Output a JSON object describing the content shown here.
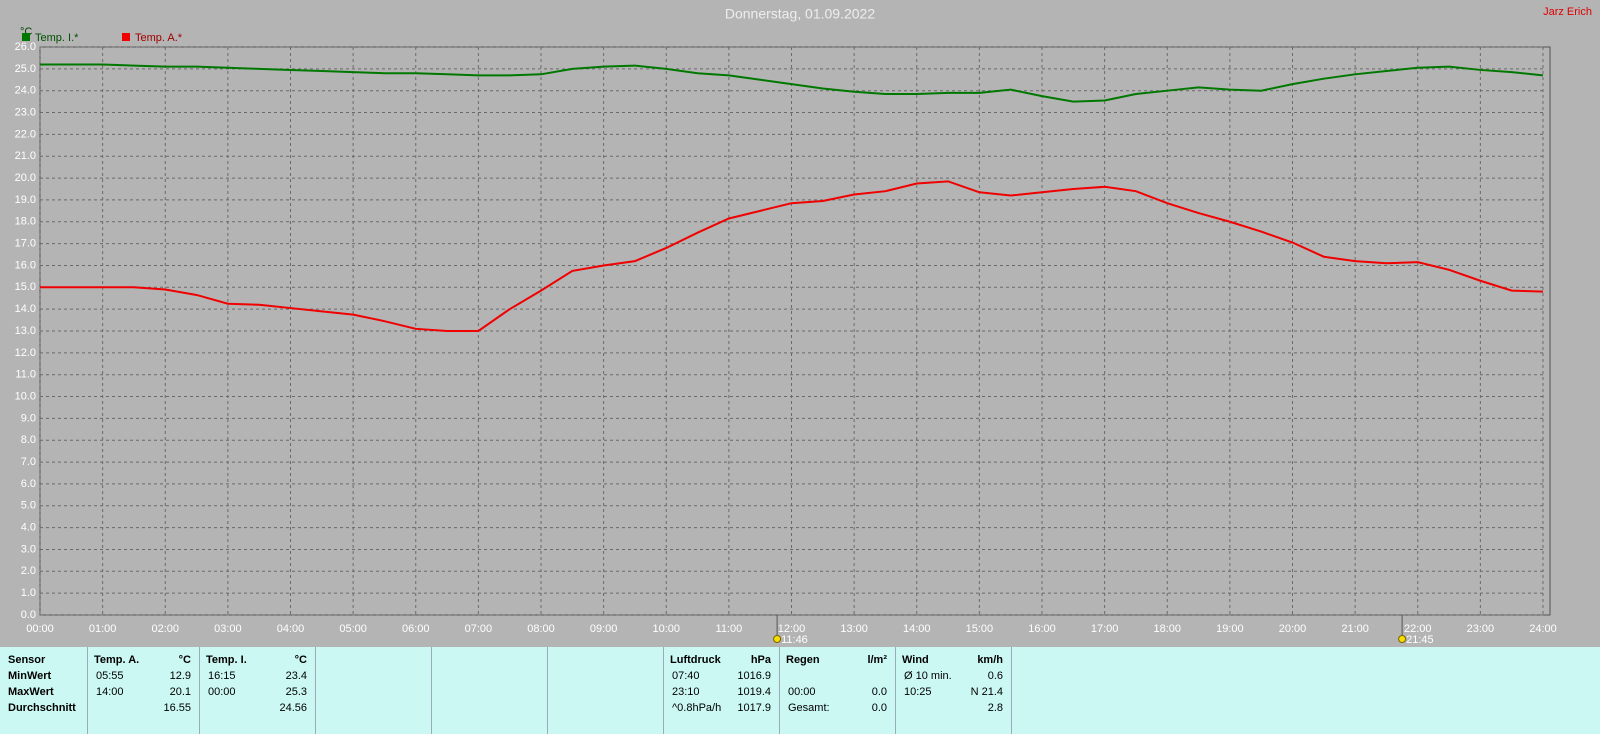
{
  "header": {
    "user": "Jarz Erich"
  },
  "chart_data": {
    "type": "line",
    "title": "Donnerstag, 01.09.2022",
    "ylabel": "°C",
    "x": [
      0,
      0.5,
      1,
      1.5,
      2,
      2.5,
      3,
      3.5,
      4,
      4.5,
      5,
      5.5,
      6,
      6.5,
      7,
      7.5,
      8,
      8.5,
      9,
      9.5,
      10,
      10.5,
      11,
      11.5,
      12,
      12.5,
      13,
      13.5,
      14,
      14.5,
      15,
      15.5,
      16,
      16.5,
      17,
      17.5,
      18,
      18.5,
      19,
      19.5,
      20,
      20.5,
      21,
      21.5,
      22,
      22.5,
      23,
      23.5,
      24
    ],
    "series": [
      {
        "name": "Temp. I.*",
        "color": "#007800",
        "values": [
          25.2,
          25.2,
          25.2,
          25.15,
          25.1,
          25.1,
          25.05,
          25.0,
          24.95,
          24.9,
          24.85,
          24.8,
          24.8,
          24.75,
          24.7,
          24.7,
          24.75,
          25.0,
          25.1,
          25.15,
          25.0,
          24.8,
          24.7,
          24.5,
          24.3,
          24.1,
          23.95,
          23.85,
          23.85,
          23.9,
          23.9,
          24.05,
          23.75,
          23.5,
          23.55,
          23.85,
          24.0,
          24.15,
          24.05,
          24.0,
          24.3,
          24.55,
          24.75,
          24.9,
          25.05,
          25.1,
          24.95,
          24.85,
          24.7
        ]
      },
      {
        "name": "Temp. A.*",
        "color": "#f00000",
        "values": [
          15.0,
          15.0,
          15.0,
          15.0,
          14.9,
          14.65,
          14.25,
          14.2,
          14.05,
          13.9,
          13.75,
          13.45,
          13.1,
          13.0,
          13.0,
          14.0,
          14.85,
          15.75,
          16.0,
          16.2,
          16.8,
          17.5,
          18.15,
          18.5,
          18.85,
          18.95,
          19.25,
          19.4,
          19.75,
          19.85,
          19.35,
          19.2,
          19.35,
          19.5,
          19.6,
          19.4,
          18.85,
          18.4,
          18.0,
          17.55,
          17.05,
          16.4,
          16.2,
          16.1,
          16.15,
          15.8,
          15.3,
          14.85,
          14.8
        ]
      }
    ],
    "xlim": [
      0,
      24
    ],
    "xticks": [
      {
        "value": 0,
        "label": "00:00"
      },
      {
        "value": 1,
        "label": "01:00"
      },
      {
        "value": 2,
        "label": "02:00"
      },
      {
        "value": 3,
        "label": "03:00"
      },
      {
        "value": 4,
        "label": "04:00"
      },
      {
        "value": 5,
        "label": "05:00"
      },
      {
        "value": 6,
        "label": "06:00"
      },
      {
        "value": 7,
        "label": "07:00"
      },
      {
        "value": 8,
        "label": "08:00"
      },
      {
        "value": 9,
        "label": "09:00"
      },
      {
        "value": 10,
        "label": "10:00"
      },
      {
        "value": 11,
        "label": "11:00"
      },
      {
        "value": 12,
        "label": "12:00"
      },
      {
        "value": 13,
        "label": "13:00"
      },
      {
        "value": 14,
        "label": "14:00"
      },
      {
        "value": 15,
        "label": "15:00"
      },
      {
        "value": 16,
        "label": "16:00"
      },
      {
        "value": 17,
        "label": "17:00"
      },
      {
        "value": 18,
        "label": "18:00"
      },
      {
        "value": 19,
        "label": "19:00"
      },
      {
        "value": 20,
        "label": "20:00"
      },
      {
        "value": 21,
        "label": "21:00"
      },
      {
        "value": 22,
        "label": "22:00"
      },
      {
        "value": 23,
        "label": "23:00"
      },
      {
        "value": 24,
        "label": "24:00"
      }
    ],
    "ylim": [
      0,
      26
    ],
    "yticks": [
      {
        "value": 0,
        "label": "0.0"
      },
      {
        "value": 1,
        "label": "1.0"
      },
      {
        "value": 2,
        "label": "2.0"
      },
      {
        "value": 3,
        "label": "3.0"
      },
      {
        "value": 4,
        "label": "4.0"
      },
      {
        "value": 5,
        "label": "5.0"
      },
      {
        "value": 6,
        "label": "6.0"
      },
      {
        "value": 7,
        "label": "7.0"
      },
      {
        "value": 8,
        "label": "8.0"
      },
      {
        "value": 9,
        "label": "9.0"
      },
      {
        "value": 10,
        "label": "10.0"
      },
      {
        "value": 11,
        "label": "11.0"
      },
      {
        "value": 12,
        "label": "12.0"
      },
      {
        "value": 13,
        "label": "13.0"
      },
      {
        "value": 14,
        "label": "14.0"
      },
      {
        "value": 15,
        "label": "15.0"
      },
      {
        "value": 16,
        "label": "16.0"
      },
      {
        "value": 17,
        "label": "17.0"
      },
      {
        "value": 18,
        "label": "18.0"
      },
      {
        "value": 19,
        "label": "19.0"
      },
      {
        "value": 20,
        "label": "20.0"
      },
      {
        "value": 21,
        "label": "21.0"
      },
      {
        "value": 22,
        "label": "22.0"
      },
      {
        "value": 23,
        "label": "23.0"
      },
      {
        "value": 24,
        "label": "24.0"
      },
      {
        "value": 25,
        "label": "25.0"
      },
      {
        "value": 26,
        "label": "26.0"
      }
    ],
    "grid": true,
    "legend": "top-left",
    "annotations": [
      {
        "x": 11.77,
        "label": "11:46"
      },
      {
        "x": 21.75,
        "label": "21:45"
      }
    ]
  },
  "stats": {
    "labels": [
      "Sensor",
      "MinWert",
      "MaxWert",
      "Durchschnitt"
    ],
    "groups": [
      {
        "header": [
          "Temp. A.",
          "°C"
        ],
        "rows": [
          [
            "05:55",
            "12.9"
          ],
          [
            "14:00",
            "20.1"
          ],
          [
            null,
            "16.55"
          ]
        ]
      },
      {
        "header": [
          "Temp. I.",
          "°C"
        ],
        "rows": [
          [
            "16:15",
            "23.4"
          ],
          [
            "00:00",
            "25.3"
          ],
          [
            null,
            "24.56"
          ]
        ]
      },
      {
        "header": [
          "Luftdruck",
          "hPa"
        ],
        "rows": [
          [
            "07:40",
            "1016.9"
          ],
          [
            "23:10",
            "1019.4"
          ],
          [
            "^0.8hPa/h",
            "1017.9"
          ]
        ]
      },
      {
        "header": [
          "Regen",
          "l/m²"
        ],
        "rows": [
          [
            null,
            null
          ],
          [
            "00:00",
            "0.0"
          ],
          [
            "Gesamt:",
            "0.0"
          ]
        ]
      },
      {
        "header": [
          "Wind",
          "km/h"
        ],
        "rows": [
          [
            "Ø 10 min.",
            "0.6"
          ],
          [
            "10:25",
            "N 21.4"
          ],
          [
            null,
            "2.8"
          ]
        ]
      }
    ]
  }
}
